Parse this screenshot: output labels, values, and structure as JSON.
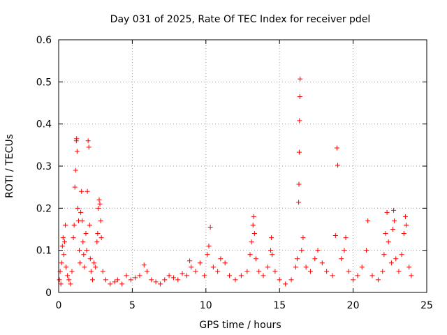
{
  "chart_data": {
    "type": "scatter",
    "title": "Day 031 of 2025, Rate Of TEC Index for receiver pdel",
    "xlabel": "GPS time / hours",
    "ylabel": "ROTI / TECUs",
    "xlim": [
      0,
      25
    ],
    "ylim": [
      0,
      0.6
    ],
    "xticks": [
      0,
      5,
      10,
      15,
      20,
      25
    ],
    "yticks": [
      0,
      0.1,
      0.2,
      0.3,
      0.4,
      0.5,
      0.6
    ],
    "xtick_labels": [
      "0",
      "5",
      "10",
      "15",
      "20",
      "25"
    ],
    "ytick_labels": [
      "0",
      "0.1",
      "0.2",
      "0.3",
      "0.4",
      "0.5",
      "0.6"
    ],
    "grid": true,
    "marker": "+",
    "color": "#ff0000",
    "series": [
      {
        "points": [
          [
            0.05,
            0.03
          ],
          [
            0.1,
            0.05
          ],
          [
            0.15,
            0.02
          ],
          [
            0.2,
            0.07
          ],
          [
            0.25,
            0.11
          ],
          [
            0.3,
            0.13
          ],
          [
            0.35,
            0.09
          ],
          [
            0.4,
            0.12
          ],
          [
            0.45,
            0.16
          ],
          [
            0.5,
            0.06
          ],
          [
            0.6,
            0.04
          ],
          [
            0.7,
            0.03
          ],
          [
            0.8,
            0.02
          ],
          [
            0.9,
            0.05
          ],
          [
            1.0,
            0.13
          ],
          [
            1.05,
            0.16
          ],
          [
            1.1,
            0.25
          ],
          [
            1.15,
            0.29
          ],
          [
            1.2,
            0.36
          ],
          [
            1.22,
            0.365
          ],
          [
            1.25,
            0.335
          ],
          [
            1.3,
            0.2
          ],
          [
            1.35,
            0.17
          ],
          [
            1.4,
            0.1
          ],
          [
            1.45,
            0.07
          ],
          [
            1.5,
            0.19
          ],
          [
            1.55,
            0.24
          ],
          [
            1.6,
            0.17
          ],
          [
            1.65,
            0.12
          ],
          [
            1.7,
            0.09
          ],
          [
            1.75,
            0.06
          ],
          [
            1.85,
            0.14
          ],
          [
            1.9,
            0.1
          ],
          [
            1.95,
            0.24
          ],
          [
            2.0,
            0.36
          ],
          [
            2.05,
            0.345
          ],
          [
            2.1,
            0.16
          ],
          [
            2.15,
            0.08
          ],
          [
            2.2,
            0.05
          ],
          [
            2.3,
            0.03
          ],
          [
            2.4,
            0.07
          ],
          [
            2.5,
            0.06
          ],
          [
            2.6,
            0.12
          ],
          [
            2.65,
            0.14
          ],
          [
            2.7,
            0.2
          ],
          [
            2.75,
            0.22
          ],
          [
            2.8,
            0.21
          ],
          [
            2.85,
            0.17
          ],
          [
            2.9,
            0.13
          ],
          [
            3.0,
            0.05
          ],
          [
            3.2,
            0.03
          ],
          [
            3.5,
            0.02
          ],
          [
            3.8,
            0.025
          ],
          [
            4.0,
            0.03
          ],
          [
            4.3,
            0.02
          ],
          [
            4.6,
            0.04
          ],
          [
            4.9,
            0.03
          ],
          [
            5.2,
            0.035
          ],
          [
            5.5,
            0.04
          ],
          [
            5.8,
            0.065
          ],
          [
            6.0,
            0.05
          ],
          [
            6.3,
            0.03
          ],
          [
            6.6,
            0.025
          ],
          [
            6.9,
            0.02
          ],
          [
            7.2,
            0.03
          ],
          [
            7.5,
            0.04
          ],
          [
            7.8,
            0.035
          ],
          [
            8.1,
            0.03
          ],
          [
            8.4,
            0.045
          ],
          [
            8.7,
            0.04
          ],
          [
            8.9,
            0.075
          ],
          [
            9.0,
            0.06
          ],
          [
            9.3,
            0.05
          ],
          [
            9.6,
            0.07
          ],
          [
            9.9,
            0.04
          ],
          [
            10.1,
            0.09
          ],
          [
            10.2,
            0.11
          ],
          [
            10.3,
            0.155
          ],
          [
            10.5,
            0.06
          ],
          [
            10.8,
            0.05
          ],
          [
            11.0,
            0.08
          ],
          [
            11.3,
            0.07
          ],
          [
            11.6,
            0.04
          ],
          [
            12.0,
            0.03
          ],
          [
            12.4,
            0.04
          ],
          [
            12.8,
            0.05
          ],
          [
            13.0,
            0.09
          ],
          [
            13.1,
            0.12
          ],
          [
            13.2,
            0.16
          ],
          [
            13.25,
            0.18
          ],
          [
            13.3,
            0.14
          ],
          [
            13.4,
            0.08
          ],
          [
            13.6,
            0.05
          ],
          [
            13.9,
            0.04
          ],
          [
            14.2,
            0.06
          ],
          [
            14.4,
            0.1
          ],
          [
            14.45,
            0.13
          ],
          [
            14.5,
            0.09
          ],
          [
            14.7,
            0.05
          ],
          [
            15.0,
            0.03
          ],
          [
            15.4,
            0.02
          ],
          [
            15.8,
            0.03
          ],
          [
            16.1,
            0.06
          ],
          [
            16.2,
            0.08
          ],
          [
            16.3,
            0.214
          ],
          [
            16.32,
            0.257
          ],
          [
            16.34,
            0.333
          ],
          [
            16.36,
            0.408
          ],
          [
            16.38,
            0.465
          ],
          [
            16.4,
            0.507
          ],
          [
            16.5,
            0.1
          ],
          [
            16.6,
            0.13
          ],
          [
            16.8,
            0.06
          ],
          [
            17.1,
            0.05
          ],
          [
            17.4,
            0.08
          ],
          [
            17.6,
            0.1
          ],
          [
            17.9,
            0.07
          ],
          [
            18.2,
            0.05
          ],
          [
            18.6,
            0.04
          ],
          [
            18.8,
            0.135
          ],
          [
            18.9,
            0.343
          ],
          [
            18.95,
            0.302
          ],
          [
            19.2,
            0.08
          ],
          [
            19.4,
            0.1
          ],
          [
            19.5,
            0.13
          ],
          [
            19.7,
            0.05
          ],
          [
            20.0,
            0.03
          ],
          [
            20.3,
            0.04
          ],
          [
            20.6,
            0.06
          ],
          [
            20.9,
            0.1
          ],
          [
            21.0,
            0.17
          ],
          [
            21.3,
            0.04
          ],
          [
            21.7,
            0.03
          ],
          [
            22.0,
            0.05
          ],
          [
            22.1,
            0.09
          ],
          [
            22.2,
            0.14
          ],
          [
            22.3,
            0.19
          ],
          [
            22.4,
            0.12
          ],
          [
            22.6,
            0.07
          ],
          [
            22.7,
            0.15
          ],
          [
            22.75,
            0.195
          ],
          [
            22.8,
            0.17
          ],
          [
            22.9,
            0.08
          ],
          [
            23.1,
            0.05
          ],
          [
            23.3,
            0.09
          ],
          [
            23.45,
            0.14
          ],
          [
            23.55,
            0.18
          ],
          [
            23.6,
            0.16
          ],
          [
            23.8,
            0.06
          ],
          [
            23.95,
            0.04
          ]
        ]
      }
    ]
  }
}
